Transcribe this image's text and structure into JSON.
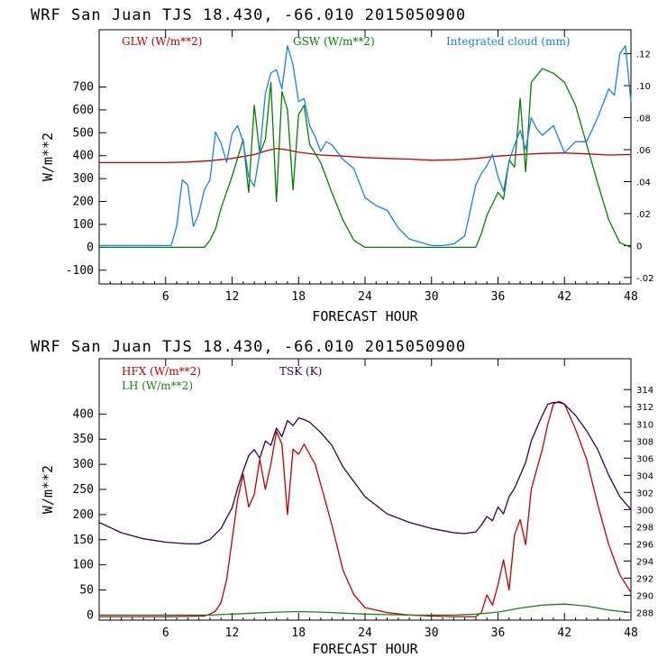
{
  "chart_data": [
    {
      "type": "line",
      "title": "WRF  San Juan TJS  18.430, -66.010  2015050900",
      "xlabel": "FORECAST HOUR",
      "ylabel": "W/m**2",
      "xlim": [
        0,
        48
      ],
      "ylim": [
        -160,
        950
      ],
      "x_ticks": [
        6,
        12,
        18,
        24,
        30,
        36,
        42,
        48
      ],
      "y_ticks": [
        -100,
        0,
        100,
        200,
        300,
        400,
        500,
        600,
        700
      ],
      "y2lim": [
        -0.024,
        0.135
      ],
      "y2_ticks": [
        -0.02,
        0,
        0.02,
        0.04,
        0.06,
        0.08,
        0.1,
        0.12
      ],
      "y2_tick_labels": [
        "-.02",
        "0",
        ".02",
        ".04",
        ".06",
        ".08",
        ".10",
        ".12"
      ],
      "grid": false,
      "series": [
        {
          "name": "GLW (W/m**2)",
          "color": "#c00000",
          "axis": "left",
          "x": [
            0,
            6,
            8,
            10,
            12,
            14,
            15,
            16,
            17,
            18,
            20,
            22,
            24,
            26,
            28,
            30,
            32,
            34,
            36,
            38,
            40,
            42,
            44,
            46,
            48
          ],
          "values": [
            370,
            370,
            372,
            378,
            388,
            405,
            420,
            432,
            425,
            415,
            403,
            398,
            392,
            388,
            385,
            380,
            382,
            388,
            398,
            405,
            410,
            412,
            408,
            403,
            405
          ]
        },
        {
          "name": "GSW (W/m**2)",
          "color": "#008000",
          "axis": "left",
          "x": [
            0,
            9.5,
            10,
            10.5,
            11,
            12,
            13,
            13.5,
            14,
            14.5,
            15,
            15.5,
            16,
            16.5,
            17,
            17.5,
            18,
            18.5,
            19,
            20,
            21,
            22,
            23,
            24,
            34,
            34.5,
            35,
            35.5,
            36,
            36.5,
            37,
            37.5,
            38,
            38.5,
            39,
            39.5,
            40,
            41,
            42,
            43,
            44,
            45,
            46,
            47,
            48
          ],
          "values": [
            0,
            0,
            30,
            80,
            170,
            310,
            470,
            240,
            620,
            410,
            470,
            720,
            200,
            680,
            600,
            250,
            580,
            620,
            450,
            370,
            240,
            120,
            30,
            0,
            0,
            60,
            140,
            190,
            240,
            210,
            380,
            350,
            650,
            330,
            720,
            750,
            780,
            760,
            720,
            620,
            450,
            280,
            120,
            20,
            0
          ]
        },
        {
          "name": "Integrated cloud (mm)",
          "color": "#1a80e6",
          "axis": "right",
          "x": [
            0,
            6.5,
            7,
            7.5,
            8,
            8.5,
            9,
            9.5,
            10,
            10.5,
            11,
            11.5,
            12,
            12.5,
            13,
            13.5,
            14,
            14.5,
            15,
            15.5,
            16,
            16.5,
            17,
            17.5,
            18,
            18.5,
            19,
            19.5,
            20,
            20.5,
            21,
            22,
            23,
            24,
            25,
            26,
            27,
            28,
            30,
            31,
            32,
            33,
            34,
            34.5,
            35,
            35.5,
            36,
            36.5,
            37,
            37.5,
            38,
            38.5,
            39,
            39.5,
            40,
            41,
            42,
            43,
            44,
            45,
            46,
            46.5,
            47,
            47.5,
            48
          ],
          "values": [
            0,
            0,
            0.012,
            0.041,
            0.038,
            0.012,
            0.02,
            0.035,
            0.041,
            0.071,
            0.064,
            0.052,
            0.07,
            0.075,
            0.065,
            0.043,
            0.037,
            0.058,
            0.095,
            0.108,
            0.11,
            0.098,
            0.125,
            0.113,
            0.09,
            0.092,
            0.075,
            0.068,
            0.059,
            0.065,
            0.063,
            0.054,
            0.048,
            0.03,
            0.025,
            0.022,
            0.011,
            0.004,
            0,
            0,
            0.001,
            0.006,
            0.038,
            0.045,
            0.05,
            0.057,
            0.043,
            0.034,
            0.053,
            0.063,
            0.072,
            0.06,
            0.08,
            0.073,
            0.069,
            0.075,
            0.058,
            0.065,
            0.065,
            0.08,
            0.098,
            0.094,
            0.12,
            0.125,
            0.09
          ]
        }
      ]
    },
    {
      "type": "line",
      "title": "WRF  San Juan TJS  18.430, -66.010  2015050900",
      "xlabel": "FORECAST HOUR",
      "ylabel": "W/m**2",
      "xlim": [
        0,
        48
      ],
      "ylim": [
        -10,
        510
      ],
      "x_ticks": [
        6,
        12,
        18,
        24,
        30,
        36,
        42,
        48
      ],
      "y_ticks": [
        0,
        50,
        100,
        150,
        200,
        250,
        300,
        350,
        400
      ],
      "y2lim": [
        287.1,
        317.6
      ],
      "y2_ticks": [
        288,
        290,
        292,
        294,
        296,
        298,
        300,
        302,
        304,
        306,
        308,
        310,
        312,
        314
      ],
      "y2_tick_labels": [
        "288",
        "290",
        "292",
        "294",
        "296",
        "298",
        "300",
        "302",
        "304",
        "306",
        "308",
        "310",
        "312",
        "314"
      ],
      "grid": false,
      "series": [
        {
          "name": "HFX (W/m**2)",
          "color": "#c00000",
          "axis": "left",
          "x": [
            0,
            6,
            9.5,
            10,
            10.5,
            11,
            11.5,
            12,
            12.5,
            13,
            13.5,
            14,
            14.5,
            15,
            15.5,
            16,
            16.5,
            17,
            17.5,
            18,
            18.5,
            19,
            19.5,
            20,
            21,
            22,
            23,
            24,
            26,
            28,
            30,
            32,
            34,
            34.5,
            35,
            35.5,
            36,
            36.5,
            37,
            37.5,
            38,
            38.5,
            39,
            39.5,
            40,
            40.5,
            41,
            41.5,
            42,
            43,
            44,
            45,
            46,
            47,
            48
          ],
          "values": [
            -3,
            -3,
            -2,
            2,
            8,
            25,
            70,
            150,
            230,
            280,
            215,
            240,
            310,
            250,
            300,
            365,
            340,
            200,
            330,
            320,
            340,
            320,
            300,
            260,
            180,
            90,
            40,
            15,
            5,
            0,
            -2,
            -3,
            -3,
            5,
            40,
            20,
            60,
            110,
            50,
            160,
            190,
            140,
            250,
            290,
            330,
            380,
            420,
            425,
            420,
            370,
            310,
            220,
            140,
            80,
            45
          ]
        },
        {
          "name": "LH  (W/m**2)",
          "color": "#208020",
          "axis": "left",
          "x": [
            0,
            6,
            10,
            12,
            14,
            16,
            18,
            20,
            22,
            24,
            28,
            32,
            34,
            36,
            38,
            40,
            42,
            44,
            46,
            48
          ],
          "values": [
            0,
            0,
            0,
            2,
            4,
            6,
            7,
            6,
            4,
            2,
            0,
            0,
            2,
            6,
            14,
            20,
            22,
            18,
            10,
            5
          ]
        },
        {
          "name": "TSK (K)",
          "color": "#300050",
          "axis": "right",
          "x": [
            0,
            2,
            4,
            6,
            8,
            9,
            10,
            11,
            12,
            12.5,
            13,
            13.5,
            14,
            14.5,
            15,
            15.5,
            16,
            16.5,
            17,
            17.5,
            18,
            18.5,
            19,
            20,
            21,
            22,
            24,
            26,
            28,
            30,
            32,
            33,
            34,
            34.5,
            35,
            35.5,
            36,
            36.5,
            37,
            37.5,
            38,
            38.5,
            39,
            39.5,
            40,
            40.5,
            41,
            41.5,
            42,
            43,
            44,
            45,
            46,
            47,
            48
          ],
          "values": [
            298.5,
            297.3,
            296.6,
            296.2,
            296,
            296,
            296.5,
            297.8,
            300.2,
            302.5,
            304.5,
            306.3,
            307,
            306,
            308,
            307.5,
            309.5,
            308.5,
            310.4,
            309.8,
            310.7,
            310.5,
            310.2,
            309,
            307.5,
            305,
            301.5,
            299.5,
            298.5,
            297.8,
            297.3,
            297.2,
            297.4,
            298.2,
            299.2,
            298.7,
            300.3,
            299.5,
            301.5,
            302.5,
            304,
            305.5,
            308,
            309.5,
            311,
            312.3,
            312.5,
            312.5,
            312.3,
            311,
            309.2,
            307,
            304,
            301.5,
            300
          ]
        }
      ]
    }
  ]
}
